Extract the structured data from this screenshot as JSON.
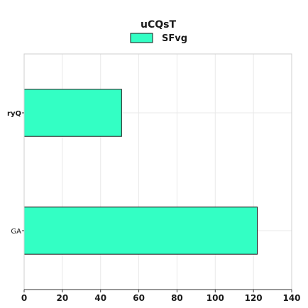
{
  "chart_data": {
    "type": "bar",
    "orientation": "horizontal",
    "title": "uCQsT",
    "xlabel": "",
    "ylabel": "",
    "categories": [
      "ryQ",
      "GA"
    ],
    "series": [
      {
        "name": "SFvg",
        "values": [
          51,
          122
        ],
        "color": "#33ffc4"
      }
    ],
    "xlim": [
      0,
      140
    ],
    "xticks": [
      0,
      20,
      40,
      60,
      80,
      100,
      120,
      140
    ],
    "grid": true,
    "legend_position": "top-center"
  }
}
